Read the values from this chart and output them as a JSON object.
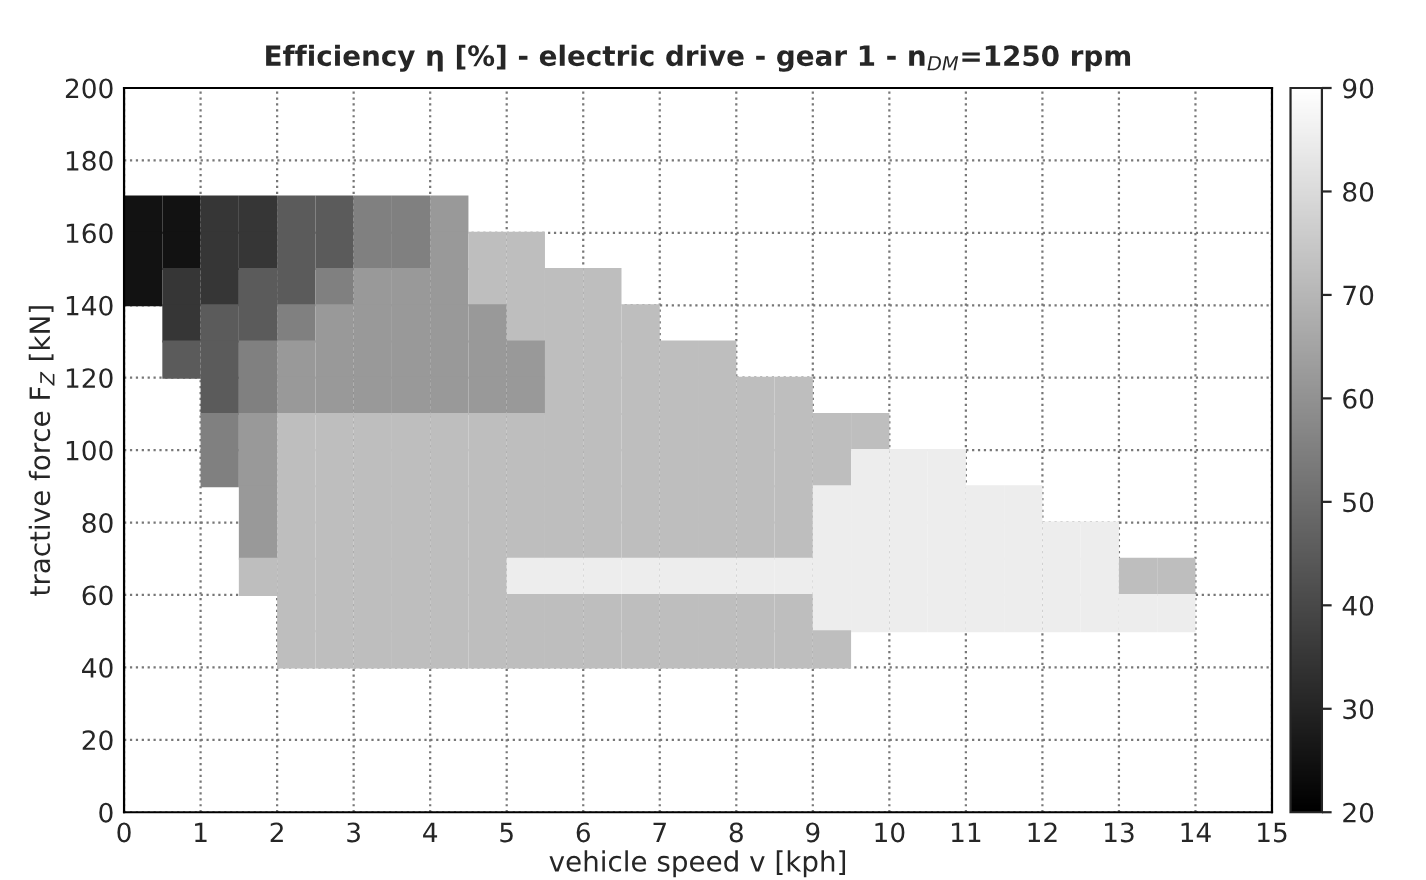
{
  "chart_data": {
    "type": "scatter",
    "title": "Efficiency η [%] - electric drive - gear 1 - n$_{DM}$=1250 rpm",
    "xlabel": "vehicle speed v [kph]",
    "ylabel": "tractive force F$_{Z}$ [kN]",
    "xlim": [
      0,
      15
    ],
    "ylim": [
      0,
      200
    ],
    "xticks": [
      0,
      1,
      2,
      3,
      4,
      5,
      6,
      7,
      8,
      9,
      10,
      11,
      12,
      13,
      14,
      15
    ],
    "yticks": [
      0,
      20,
      40,
      60,
      80,
      100,
      120,
      140,
      160,
      180,
      200
    ],
    "clim": [
      20,
      90
    ],
    "cticks": [
      20,
      30,
      40,
      50,
      60,
      70,
      80,
      90
    ],
    "grid": true,
    "marker": "square",
    "x": [
      0.25,
      0.75,
      1.25,
      1.75,
      2.25,
      2.75,
      3.25,
      3.75,
      4.25,
      0.25,
      0.75,
      1.25,
      1.75,
      2.25,
      2.75,
      3.25,
      3.75,
      4.25,
      4.75,
      5.25,
      0.25,
      0.75,
      1.25,
      1.75,
      2.25,
      2.75,
      3.25,
      3.75,
      4.25,
      4.75,
      5.25,
      5.75,
      6.25,
      0.75,
      1.25,
      1.75,
      2.25,
      2.75,
      3.25,
      3.75,
      4.25,
      4.75,
      5.25,
      5.75,
      6.25,
      6.75,
      0.75,
      1.25,
      1.75,
      2.25,
      2.75,
      3.25,
      3.75,
      4.25,
      4.75,
      5.25,
      5.75,
      6.25,
      6.75,
      7.25,
      7.75,
      1.25,
      1.75,
      2.25,
      2.75,
      3.25,
      3.75,
      4.25,
      4.75,
      5.25,
      5.75,
      6.25,
      6.75,
      7.25,
      7.75,
      8.25,
      8.75,
      1.25,
      1.75,
      2.25,
      2.75,
      3.25,
      3.75,
      4.25,
      4.75,
      5.25,
      5.75,
      6.25,
      6.75,
      7.25,
      7.75,
      8.25,
      8.75,
      9.25,
      9.75,
      1.25,
      1.75,
      2.25,
      2.75,
      3.25,
      3.75,
      4.25,
      4.75,
      5.25,
      5.75,
      6.25,
      6.75,
      7.25,
      7.75,
      8.25,
      8.75,
      9.25,
      9.75,
      10.25,
      10.75,
      1.75,
      2.25,
      2.75,
      3.25,
      3.75,
      4.25,
      4.75,
      5.25,
      5.75,
      6.25,
      6.75,
      7.25,
      7.75,
      8.25,
      8.75,
      9.25,
      9.75,
      10.25,
      10.75,
      11.25,
      11.75,
      1.75,
      2.25,
      2.75,
      3.25,
      3.75,
      4.25,
      4.75,
      5.25,
      5.75,
      6.25,
      6.75,
      7.25,
      7.75,
      8.25,
      8.75,
      9.25,
      9.75,
      10.25,
      10.75,
      11.25,
      11.75,
      12.25,
      12.75,
      1.75,
      2.25,
      2.75,
      3.25,
      3.75,
      4.25,
      4.75,
      5.25,
      5.75,
      6.25,
      6.75,
      7.25,
      7.75,
      8.25,
      8.75,
      9.25,
      9.75,
      10.25,
      10.75,
      11.25,
      11.75,
      12.25,
      12.75,
      13.25,
      13.75,
      2.25,
      2.75,
      3.25,
      3.75,
      4.25,
      4.75,
      5.25,
      5.75,
      6.25,
      6.75,
      7.25,
      7.75,
      8.25,
      8.75,
      9.25,
      9.75,
      10.25,
      10.75,
      11.25,
      11.75,
      12.25,
      12.75,
      13.25,
      13.75,
      2.25,
      2.75,
      3.25,
      3.75,
      4.25,
      4.75,
      5.25,
      5.75,
      6.25,
      6.75,
      7.25,
      7.75,
      8.25,
      8.75,
      9.25
    ],
    "values": [
      165,
      165,
      165,
      165,
      165,
      165,
      165,
      165,
      165,
      155,
      155,
      155,
      155,
      155,
      155,
      155,
      155,
      155,
      155,
      155,
      145,
      145,
      145,
      145,
      145,
      145,
      145,
      145,
      145,
      145,
      145,
      145,
      145,
      135,
      135,
      135,
      135,
      135,
      135,
      135,
      135,
      135,
      135,
      135,
      135,
      135,
      125,
      125,
      125,
      125,
      125,
      125,
      125,
      125,
      125,
      125,
      125,
      125,
      125,
      125,
      125,
      115,
      115,
      115,
      115,
      115,
      115,
      115,
      115,
      115,
      115,
      115,
      115,
      115,
      115,
      115,
      115,
      105,
      105,
      105,
      105,
      105,
      105,
      105,
      105,
      105,
      105,
      105,
      105,
      105,
      105,
      105,
      105,
      105,
      105,
      95,
      95,
      95,
      95,
      95,
      95,
      95,
      95,
      95,
      95,
      95,
      95,
      95,
      95,
      95,
      95,
      95,
      95,
      95,
      95,
      85,
      85,
      85,
      85,
      85,
      85,
      85,
      85,
      85,
      85,
      85,
      85,
      85,
      85,
      85,
      85,
      85,
      85,
      85,
      85,
      85,
      75,
      75,
      75,
      75,
      75,
      75,
      75,
      75,
      75,
      75,
      75,
      75,
      75,
      75,
      75,
      75,
      75,
      75,
      75,
      75,
      75,
      75,
      75,
      65,
      65,
      65,
      65,
      65,
      65,
      65,
      65,
      65,
      65,
      65,
      65,
      65,
      65,
      65,
      65,
      65,
      65,
      65,
      65,
      65,
      65,
      65,
      65,
      65,
      55,
      55,
      55,
      55,
      55,
      55,
      55,
      55,
      55,
      55,
      55,
      55,
      55,
      55,
      55,
      55,
      55,
      55,
      55,
      55,
      55,
      55,
      55,
      55,
      45,
      45,
      45,
      45,
      45,
      45,
      45,
      45,
      45,
      45,
      45,
      45,
      45,
      45,
      45
    ],
    "cvalues": [
      25,
      25,
      35,
      35,
      45,
      45,
      55,
      55,
      62,
      25,
      25,
      35,
      35,
      45,
      45,
      55,
      55,
      62,
      72,
      72,
      25,
      35,
      35,
      45,
      45,
      55,
      62,
      62,
      62,
      72,
      72,
      72,
      72,
      35,
      45,
      45,
      55,
      62,
      62,
      62,
      62,
      62,
      72,
      72,
      72,
      72,
      45,
      45,
      55,
      62,
      62,
      62,
      62,
      62,
      62,
      62,
      72,
      72,
      72,
      72,
      72,
      45,
      55,
      62,
      62,
      62,
      62,
      62,
      62,
      62,
      72,
      72,
      72,
      72,
      72,
      72,
      72,
      55,
      62,
      72,
      72,
      72,
      72,
      72,
      72,
      72,
      72,
      72,
      72,
      72,
      72,
      72,
      72,
      72,
      72,
      55,
      62,
      72,
      72,
      72,
      72,
      72,
      72,
      72,
      72,
      72,
      72,
      72,
      72,
      72,
      72,
      72,
      85,
      85,
      85,
      62,
      72,
      72,
      72,
      72,
      72,
      72,
      72,
      72,
      72,
      72,
      72,
      72,
      72,
      72,
      85,
      85,
      85,
      85,
      85,
      85,
      62,
      72,
      72,
      72,
      72,
      72,
      72,
      72,
      72,
      72,
      72,
      72,
      72,
      72,
      72,
      85,
      85,
      85,
      85,
      85,
      85,
      85,
      85,
      72,
      72,
      72,
      72,
      72,
      72,
      72,
      85,
      85,
      85,
      85,
      85,
      85,
      85,
      85,
      85,
      85,
      85,
      85,
      85,
      85,
      85,
      85,
      72,
      72,
      72,
      72,
      72,
      72,
      72,
      72,
      72,
      72,
      72,
      72,
      72,
      72,
      72,
      72,
      85,
      85,
      85,
      85,
      85,
      85,
      85,
      85,
      85,
      85,
      72,
      72,
      72,
      72,
      72,
      72,
      72,
      72,
      72,
      72,
      72,
      72,
      72,
      72,
      72
    ]
  }
}
